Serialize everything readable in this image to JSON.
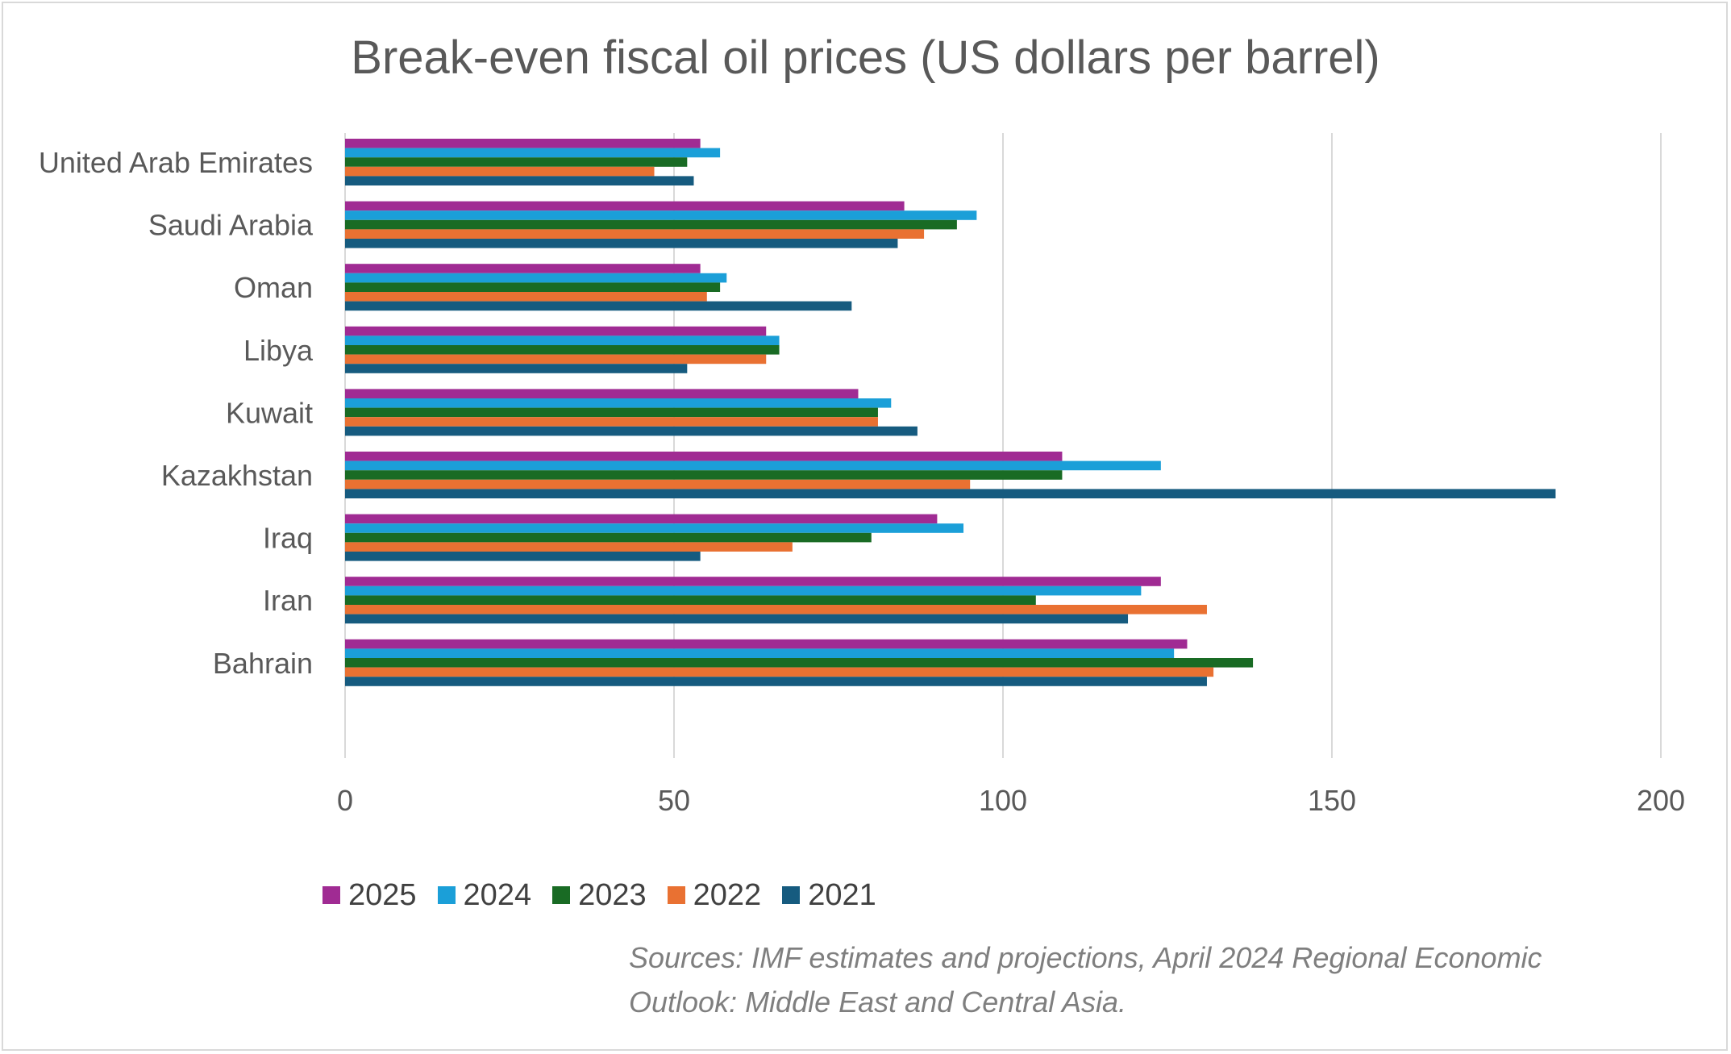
{
  "chart_data": {
    "type": "bar",
    "orientation": "horizontal",
    "title": "Break-even fiscal oil prices (US dollars per barrel)",
    "categories": [
      "United Arab Emirates",
      "Saudi Arabia",
      "Oman",
      "Libya",
      "Kuwait",
      "Kazakhstan",
      "Iraq",
      "Iran",
      "Bahrain"
    ],
    "series": [
      {
        "name": "2025",
        "color": "#a02b93",
        "values": [
          54,
          85,
          54,
          64,
          78,
          109,
          90,
          124,
          128
        ]
      },
      {
        "name": "2024",
        "color": "#1b9fd8",
        "values": [
          57,
          96,
          58,
          66,
          83,
          124,
          94,
          121,
          126
        ]
      },
      {
        "name": "2023",
        "color": "#196b24",
        "values": [
          52,
          93,
          57,
          66,
          81,
          109,
          80,
          105,
          138
        ]
      },
      {
        "name": "2022",
        "color": "#e97132",
        "values": [
          47,
          88,
          55,
          64,
          81,
          95,
          68,
          131,
          132
        ]
      },
      {
        "name": "2021",
        "color": "#165b7f",
        "values": [
          53,
          84,
          77,
          52,
          87,
          184,
          54,
          119,
          131
        ]
      }
    ],
    "xlim": [
      0,
      200
    ],
    "xticks": [
      0,
      50,
      100,
      150,
      200
    ],
    "xlabel": "",
    "ylabel": "",
    "grid": true,
    "legend": "bottom"
  },
  "source_lines": [
    "Sources: IMF estimates and projections, April 2024 Regional Economic",
    "Outlook: Middle East and Central Asia."
  ],
  "colors": {
    "gridline": "#d9d9d9",
    "axis_text": "#595959"
  }
}
